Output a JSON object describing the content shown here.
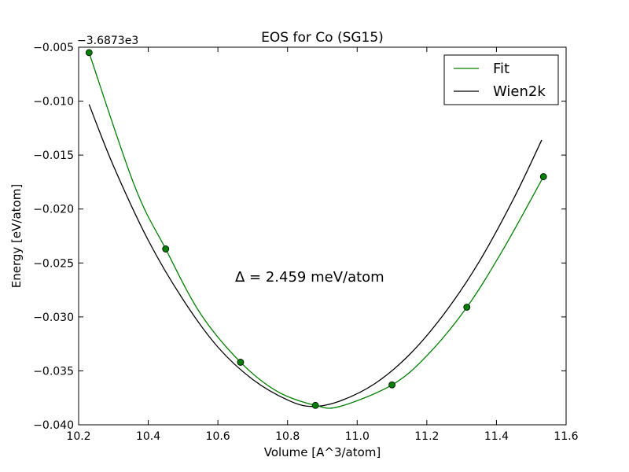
{
  "chart_data": {
    "type": "line",
    "title": "EOS for Co (SG15)",
    "xlabel": "Volume [A^3/atom]",
    "ylabel": "Energy [eV/atom]",
    "y_offset_label": "−3.6873e3",
    "xlim": [
      10.2,
      11.6
    ],
    "ylim": [
      -0.04,
      -0.005
    ],
    "x_ticks": [
      10.2,
      10.4,
      10.6,
      10.8,
      11.0,
      11.2,
      11.4,
      11.6
    ],
    "x_tick_labels": [
      "10.2",
      "10.4",
      "10.6",
      "10.8",
      "11.0",
      "11.2",
      "11.4",
      "11.6"
    ],
    "y_ticks": [
      -0.005,
      -0.01,
      -0.015,
      -0.02,
      -0.025,
      -0.03,
      -0.035,
      -0.04
    ],
    "y_tick_labels": [
      "−0.005",
      "−0.010",
      "−0.015",
      "−0.020",
      "−0.025",
      "−0.030",
      "−0.035",
      "−0.040"
    ],
    "grid": false,
    "legend_position": "top-right",
    "annotation": "Δ = 2.459 meV/atom",
    "series": [
      {
        "name": "Fit",
        "color": "#008000",
        "marker": "circle",
        "x": [
          10.23,
          10.36,
          10.45,
          10.55,
          10.665,
          10.77,
          10.88,
          10.95,
          11.1,
          11.2,
          11.315,
          11.42,
          11.535
        ],
        "y": [
          -0.0055,
          -0.0178,
          -0.0237,
          -0.0297,
          -0.0342,
          -0.0369,
          -0.0382,
          -0.0383,
          -0.0363,
          -0.0336,
          -0.0291,
          -0.0237,
          -0.017
        ],
        "points_x": [
          10.23,
          10.45,
          10.665,
          10.88,
          11.1,
          11.315,
          11.535
        ],
        "points_y": [
          -0.0055,
          -0.0237,
          -0.0342,
          -0.0382,
          -0.0363,
          -0.0291,
          -0.017
        ]
      },
      {
        "name": "Wien2k",
        "color": "#000000",
        "x": [
          10.23,
          10.3,
          10.4,
          10.5,
          10.6,
          10.7,
          10.8,
          10.87,
          10.95,
          11.05,
          11.15,
          11.25,
          11.35,
          11.45,
          11.53
        ],
        "y": [
          -0.0103,
          -0.016,
          -0.0229,
          -0.0284,
          -0.0328,
          -0.0358,
          -0.0377,
          -0.0383,
          -0.0378,
          -0.0362,
          -0.0335,
          -0.0297,
          -0.0249,
          -0.019,
          -0.0136
        ]
      }
    ]
  }
}
